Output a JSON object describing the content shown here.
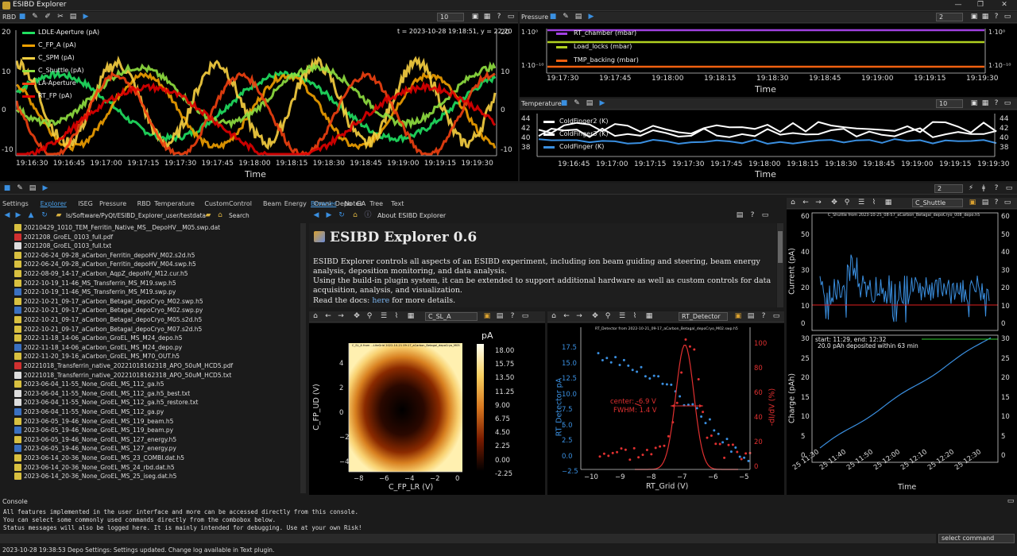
{
  "window": {
    "title": "ESIBD Explorer",
    "minimize": "—",
    "restore": "❐",
    "close": "✕"
  },
  "rbd_panel": {
    "title": "RBD",
    "combo": "10",
    "cursor_readout": "t = 2023-10-28 19:18:51, y = 22.20",
    "xlabel": "Time",
    "xticks": [
      "19:16:30",
      "19:16:45",
      "19:17:00",
      "19:17:15",
      "19:17:30",
      "19:17:45",
      "19:18:00",
      "19:18:15",
      "19:18:30",
      "19:18:45",
      "19:19:00",
      "19:19:15",
      "19:19:30"
    ],
    "yticks": [
      "20",
      "10",
      "0",
      "-10"
    ],
    "legend": [
      "LDLE-Aperture (pA)",
      "C_FP_A (pA)",
      "C_SPM (pA)",
      "C_Shuttle (pA)",
      "LA-Aperture",
      "RT_FP (pA)"
    ]
  },
  "pressure_panel": {
    "title": "Pressure",
    "combo": "2",
    "xlabel": "Time",
    "xticks": [
      "19:17:30",
      "19:17:45",
      "19:18:00",
      "19:18:15",
      "19:18:30",
      "19:18:45",
      "19:19:00",
      "19:19:15",
      "19:19:30"
    ],
    "yticks_left": [
      "1·10⁰",
      "1·10⁻¹⁰"
    ],
    "yticks_right": [
      "1·10⁰",
      "1·10⁻¹⁰"
    ],
    "legend": [
      "RT_chamber (mbar)",
      "Load_locks (mbar)",
      "TMP_backing (mbar)"
    ]
  },
  "temperature_panel": {
    "title": "Temperature",
    "combo": "10",
    "xlabel": "Time",
    "xticks": [
      "19:16:45",
      "19:17:00",
      "19:17:15",
      "19:17:30",
      "19:17:45",
      "19:18:00",
      "19:18:15",
      "19:18:30",
      "19:18:45",
      "19:19:00",
      "19:19:15",
      "19:19:30"
    ],
    "yticks": [
      "44",
      "42",
      "40",
      "38"
    ],
    "legend": [
      "ColdFinger2 (K)",
      "ColdFinger3 (K)",
      "ColdFinger (K)"
    ]
  },
  "dock": {
    "combo": "2"
  },
  "tabs": [
    "Settings",
    "Explorer",
    "ISEG",
    "Pressure",
    "RBD",
    "Temperature",
    "CustomControl",
    "Beam",
    "Energy",
    "Omni",
    "Depo",
    "GA"
  ],
  "selected_tab": "Explorer",
  "explorer": {
    "path": "ls/Software/PyQt/ESIBD_Explorer_user/testdata",
    "search_placeholder": "Search",
    "files": [
      "20210429_1010_TEM_Ferritin_Native_MS__DepoHV__M05.swp.dat",
      "2021208_GroEL_0103_full.pdf",
      "2021208_GroEL_0103_full.txt",
      "2022-06-24_09-28_aCarbon_Ferritin_depoHV_M02.s2d.h5",
      "2022-06-24_09-28_aCarbon_Ferritin_depoHV_M04.swp.h5",
      "2022-08-09_14-17_aCarbon_AqpZ_depoHV_M12.cur.h5",
      "2022-10-19_11-46_MS_Transferrin_MS_M19.swp.h5",
      "2022-10-19_11-46_MS_Transferrin_MS_M19.swp.py",
      "2022-10-21_09-17_aCarbon_Betagal_depoCryo_M02.swp.h5",
      "2022-10-21_09-17_aCarbon_Betagal_depoCryo_M02.swp.py",
      "2022-10-21_09-17_aCarbon_Betagal_depoCryo_M05.s2d.h5",
      "2022-10-21_09-17_aCarbon_Betagal_depoCryo_M07.s2d.h5",
      "2022-11-18_14-06_aCarbon_GroEL_MS_M24_depo.h5",
      "2022-11-18_14-06_aCarbon_GroEL_MS_M24_depo.py",
      "2022-11-20_19-16_aCarbon_GroEL_MS_M70_OUT.h5",
      "20221018_Transferrin_native_20221018162318_APO_50uM_HCD5.pdf",
      "20221018_Transferrin_native_20221018162318_APO_50uM_HCD5.txt",
      "2023-06-04_11-55_None_GroEL_MS_112_ga.h5",
      "2023-06-04_11-55_None_GroEL_MS_112_ga.h5_best.txt",
      "2023-06-04_11-55_None_GroEL_MS_112_ga.h5_restore.txt",
      "2023-06-04_11-55_None_GroEL_MS_112_ga.py",
      "2023-06-05_19-46_None_GroEL_MS_119_beam.h5",
      "2023-06-05_19-46_None_GroEL_MS_119_beam.py",
      "2023-06-05_19-46_None_GroEL_MS_127_energy.h5",
      "2023-06-05_19-46_None_GroEL_MS_127_energy.py",
      "2023-06-14_20-36_None_GroEL_MS_23_COMBI.dat.h5",
      "2023-06-14_20-36_None_GroEL_MS_24_rbd.dat.h5",
      "2023-06-14_20-36_None_GroEL_MS_25_iseg.dat.h5"
    ]
  },
  "browser": {
    "tabs": [
      "Browser",
      "Notes",
      "Tree",
      "Text"
    ],
    "selected": "Browser",
    "page_title": "About ESIBD Explorer",
    "heading": "ESIBD Explorer 0.6",
    "para1": "ESIBD Explorer controls all aspects of an ESIBD experiment, including ion beam guiding and steering, beam energy analysis, deposition monitoring, and data analysis.",
    "para2": "Using the build-in plugin system, it can be extended to support additional hardware as well as custom controls for data acquisition, analysis, and visualization.",
    "docs_prefix": "Read the docs: ",
    "docs_link": "here",
    "docs_suffix": " for more details."
  },
  "map_plot": {
    "combo": "C_SL_A",
    "title": "C_SL_A from ...LiteGrid 2022-10-21 09:17_aCarbon_Betagal_depoCryo_M05.s2d.h5",
    "cbar_label": "pA",
    "cbar_ticks": [
      "18.00",
      "15.75",
      "13.50",
      "11.25",
      "9.00",
      "6.75",
      "4.50",
      "2.25",
      "0.00",
      "-2.25"
    ],
    "xlabel": "C_FP_LR (V)",
    "ylabel": "C_FP_UD (V)",
    "xticks": [
      "−8",
      "−6",
      "−4",
      "−2",
      "0"
    ],
    "yticks": [
      "4",
      "2",
      "0",
      "−2",
      "−4"
    ]
  },
  "sweep_plot": {
    "combo": "RT_Detector",
    "title": "RT_Detector from 2022-10-21_09-17_aCarbon_Betagal_depoCryo_M02.swp.h5",
    "xlabel": "RT_Grid (V)",
    "ylabel_left": "RT_Detector pA",
    "ylabel_right": "-dI/dV (%)",
    "annot_center": "center: -6.9 V",
    "annot_fwhm": "FWHM: 1.4 V",
    "xticks": [
      "−10",
      "−9",
      "−8",
      "−7",
      "−6",
      "−5"
    ],
    "yticks_left": [
      "17.5",
      "15.0",
      "12.5",
      "10.0",
      "7.5",
      "5.0",
      "2.5",
      "0.0",
      "−2.5"
    ],
    "yticks_right": [
      "100",
      "80",
      "60",
      "40",
      "20",
      "0"
    ]
  },
  "depo_plot": {
    "combo": "C_Shuttle",
    "title": "C_Shuttle from 2023-10-25_08-57_aCarbon_Betagal_depoCryo_008_depo.h5",
    "ylabel_top": "Current (pA)",
    "ylabel_bottom": "Charge (pAh)",
    "xlabel": "Time",
    "yticks_top": [
      "60",
      "50",
      "40",
      "30",
      "20",
      "10",
      "0"
    ],
    "yticks_bottom": [
      "30",
      "25",
      "20",
      "15",
      "10",
      "5",
      "0"
    ],
    "xticks": [
      "25 11:30",
      "25 11:40",
      "25 11:50",
      "25 12:00",
      "25 12:10",
      "25 12:20",
      "25 12:30"
    ],
    "info1": "start: 11:29, end: 12:32",
    "info2": "20.0 pAh deposited within 63 min"
  },
  "console": {
    "title": "Console",
    "lines": [
      "All features implemented in the user interface and more can be accessed directly from this console.",
      "You can select some commonly used commands directly from the combobox below.",
      "Status messages will also be logged here. It is mainly intended for debugging. Use at your own Risk!"
    ],
    "command_placeholder": "select command"
  },
  "status_bar": "2023-10-28 19:38:53 Depo Settings: Settings updated. Change log available in Text plugin.",
  "colors": {
    "accent": "#3a8fe0",
    "bg": "#1b1b1b",
    "plot_bg": "#000000"
  }
}
